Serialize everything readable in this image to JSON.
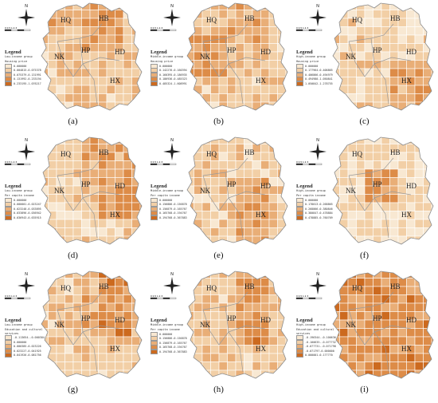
{
  "panels": [
    {
      "label": "(a)",
      "group": "Low-income group",
      "variable": "Housing price",
      "classes": [
        "0.000000",
        "0.004815-0.075378",
        "0.075379-0.131991",
        "0.131992-0.233194",
        "0.233195-1.076217"
      ]
    },
    {
      "label": "(b)",
      "group": "Middle-income group",
      "variable": "Housing price",
      "classes": [
        "0.000000",
        "0.142276-0.160394",
        "0.160395-0.186935",
        "0.186936-0.485323",
        "0.485324-1.608991"
      ]
    },
    {
      "label": "(c)",
      "group": "High-income group",
      "variable": "Housing price",
      "classes": [
        "0.000000",
        "0.177964-0.406865",
        "0.406866-0.494979",
        "0.494980-1.050841",
        "1.050842-1.278755"
      ]
    },
    {
      "label": "(d)",
      "group": "Low-income group",
      "variable": "Per capita income",
      "classes": [
        "0.000000",
        "0.000001-0.023247",
        "0.023248-0.033895",
        "0.033896-0.036942",
        "0.036943-0.635915"
      ]
    },
    {
      "label": "(e)",
      "group": "Middle-income group",
      "variable": "Per capita income",
      "classes": [
        "0.000000",
        "0.156886-0.156878",
        "0.156879-0.165767",
        "0.165768-0.194767",
        "0.194768-0.367883"
      ]
    },
    {
      "label": "(f)",
      "group": "High-income group",
      "variable": "Per capita income",
      "classes": [
        "0.000000",
        "0.178013-0.268865",
        "0.268866-0.380846",
        "0.380847-0.478884",
        "0.478885-0.760709"
      ]
    },
    {
      "label": "(g)",
      "group": "Low-income group",
      "variable": "Education and cultural services",
      "classes": [
        "-0.113654--0.000384",
        "0.000000",
        "0.000385-0.023226",
        "0.023227-0.041925",
        "0.041926-0.081756"
      ]
    },
    {
      "label": "(h)",
      "group": "Middle-income group",
      "variable": "Per capita income",
      "classes": [
        "0.000000",
        "0.156886-0.156878",
        "0.156879-0.165767",
        "0.165768-0.194767",
        "0.194768-0.367883"
      ]
    },
    {
      "label": "(i)",
      "group": "High-income group",
      "variable": "Education and cultural services",
      "classes": [
        "-0.196344--0.100636",
        "-0.100635--0.077732",
        "-0.077731--0.071798",
        "-0.071797-0.000000",
        "0.000001-0.177770"
      ]
    }
  ],
  "districts": {
    "hq": "HQ",
    "hb": "HB",
    "nk": "NK",
    "hp": "HP",
    "hd": "HD",
    "hx": "HX"
  },
  "legend_heading": "Legend",
  "north": "N",
  "scale_text": "0 0.5 1  2  3",
  "colors": [
    "#f8e8d2",
    "#f2cfa6",
    "#e9ae77",
    "#dd8c48",
    "#cc6a1f"
  ]
}
